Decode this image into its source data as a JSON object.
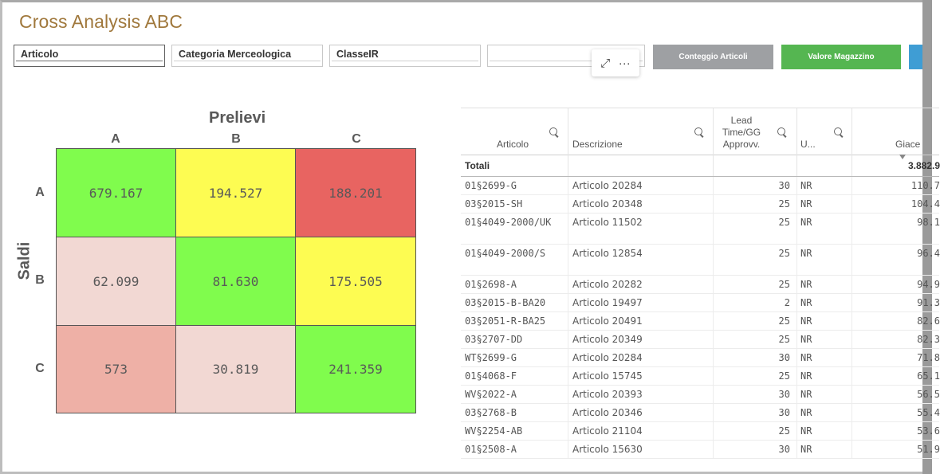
{
  "app": {
    "title": "Cross Analysis ABC"
  },
  "filters": [
    {
      "label": "Articolo"
    },
    {
      "label": "Categoria Merceologica"
    },
    {
      "label": "ClasseIR"
    },
    {
      "label": ""
    }
  ],
  "buttons": {
    "conteggio": "Conteggio Articoli",
    "valore": "Valore Magazzino"
  },
  "tools": {
    "expand": "⤢",
    "more": "···"
  },
  "matrix": {
    "x_title": "Prelievi",
    "y_title": "Saldi",
    "columns": [
      "A",
      "B",
      "C"
    ],
    "rows": [
      "A",
      "B",
      "C"
    ],
    "cells": [
      {
        "value": "679.167",
        "color": "#80fc4d"
      },
      {
        "value": "194.527",
        "color": "#fdfc52"
      },
      {
        "value": "188.201",
        "color": "#e86461"
      },
      {
        "value": "62.099",
        "color": "#f2d8d3"
      },
      {
        "value": "81.630",
        "color": "#80fc4d"
      },
      {
        "value": "175.505",
        "color": "#fdfc52"
      },
      {
        "value": "573",
        "color": "#eeb0a6"
      },
      {
        "value": "30.819",
        "color": "#f2d8d3"
      },
      {
        "value": "241.359",
        "color": "#80fc4d"
      }
    ]
  },
  "table": {
    "headers": {
      "articolo": "Articolo",
      "descrizione": "Descrizione",
      "lead": "Lead Time/GG Approvv.",
      "um": "U...",
      "giacenza": "Giace"
    },
    "totals": {
      "label": "Totali",
      "giacenza": "3.882.9"
    },
    "rows": [
      {
        "articolo": "01§2699-G",
        "descrizione": "Articolo 20284",
        "lead": "30",
        "um": "NR",
        "giacenza": "110.7"
      },
      {
        "articolo": "03§2015-SH",
        "descrizione": "Articolo 20348",
        "lead": "25",
        "um": "NR",
        "giacenza": "104.4"
      },
      {
        "articolo": "01§4049-2000/UK",
        "descrizione": "Articolo 11502",
        "lead": "25",
        "um": "NR",
        "giacenza": "98.1"
      },
      {
        "articolo": "01§4049-2000/S",
        "descrizione": "Articolo 12854",
        "lead": "25",
        "um": "NR",
        "giacenza": "96.4"
      },
      {
        "articolo": "01§2698-A",
        "descrizione": "Articolo 20282",
        "lead": "25",
        "um": "NR",
        "giacenza": "94.9"
      },
      {
        "articolo": "03§2015-B-BA20",
        "descrizione": "Articolo 19497",
        "lead": "2",
        "um": "NR",
        "giacenza": "91.3"
      },
      {
        "articolo": "03§2051-R-BA25",
        "descrizione": "Articolo 20491",
        "lead": "25",
        "um": "NR",
        "giacenza": "82.6"
      },
      {
        "articolo": "03§2707-DD",
        "descrizione": "Articolo 20349",
        "lead": "25",
        "um": "NR",
        "giacenza": "82.3"
      },
      {
        "articolo": "WT§2699-G",
        "descrizione": "Articolo 20284",
        "lead": "30",
        "um": "NR",
        "giacenza": "71.8"
      },
      {
        "articolo": "01§4068-F",
        "descrizione": "Articolo 15745",
        "lead": "25",
        "um": "NR",
        "giacenza": "65.1"
      },
      {
        "articolo": "WV§2022-A",
        "descrizione": "Articolo 20393",
        "lead": "30",
        "um": "NR",
        "giacenza": "56.5"
      },
      {
        "articolo": "03§2768-B",
        "descrizione": "Articolo 20346",
        "lead": "30",
        "um": "NR",
        "giacenza": "55.4"
      },
      {
        "articolo": "WV§2254-AB",
        "descrizione": "Articolo 21104",
        "lead": "25",
        "um": "NR",
        "giacenza": "53.6"
      },
      {
        "articolo": "01§2508-A",
        "descrizione": "Articolo 15630",
        "lead": "30",
        "um": "NR",
        "giacenza": "51.9"
      }
    ]
  }
}
